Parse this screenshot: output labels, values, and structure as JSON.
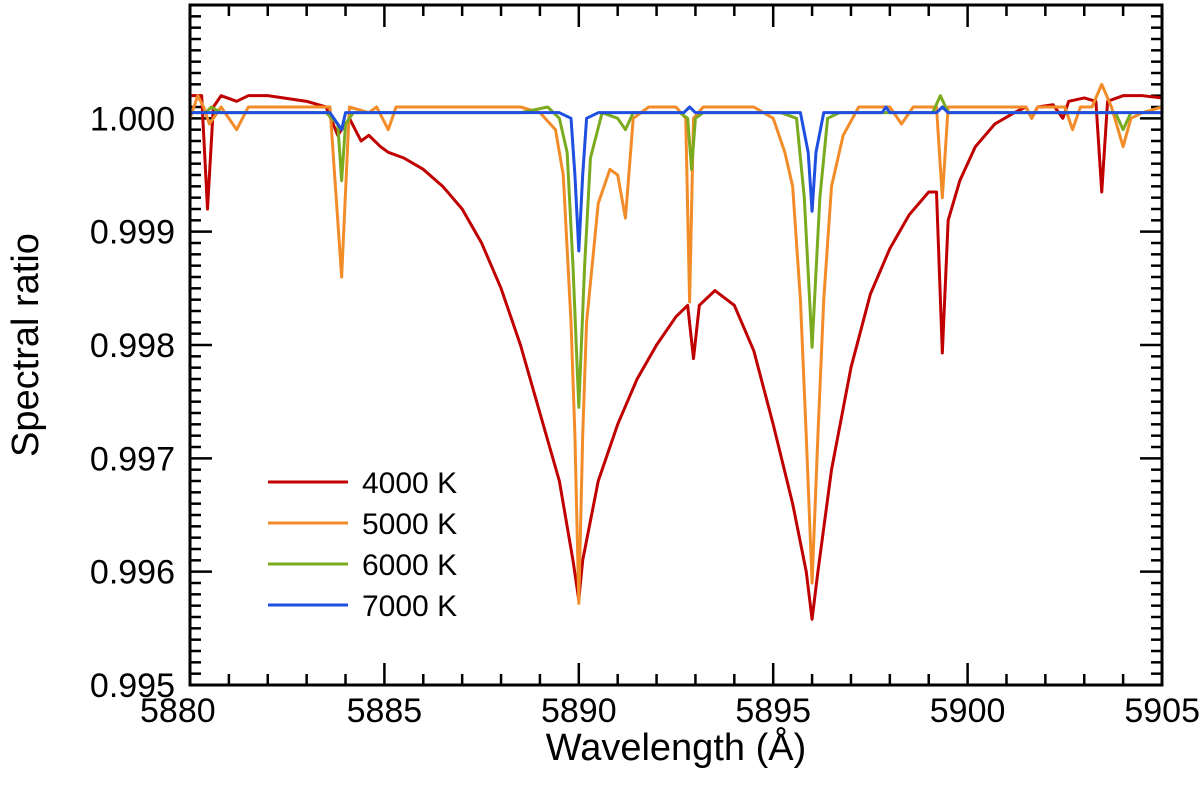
{
  "chart_data": {
    "type": "line",
    "title": "",
    "xlabel": "Wavelength (Å)",
    "ylabel": "Spectral ratio",
    "xlim": [
      5880,
      5905
    ],
    "ylim": [
      0.995,
      1.001
    ],
    "x_ticks": [
      5880,
      5885,
      5890,
      5895,
      5900,
      5905
    ],
    "x_tick_labels": [
      "5880",
      "5885",
      "5890",
      "5895",
      "5900",
      "5905"
    ],
    "x_minor_step": 1,
    "y_ticks": [
      0.995,
      0.996,
      0.997,
      0.998,
      0.999,
      1.0
    ],
    "y_tick_labels": [
      "0.995",
      "0.996",
      "0.997",
      "0.998",
      "0.999",
      "1.000"
    ],
    "y_minor_step": 0.0001,
    "grid": false,
    "legend_position": "bottom-left",
    "series": [
      {
        "name": "4000 K",
        "color": "#c00000",
        "points": [
          [
            5880.0,
            1.0002
          ],
          [
            5880.3,
            1.0002
          ],
          [
            5880.45,
            0.9992
          ],
          [
            5880.6,
            1.0001
          ],
          [
            5880.8,
            1.0002
          ],
          [
            5881.2,
            1.00015
          ],
          [
            5881.5,
            1.0002
          ],
          [
            5882.0,
            1.0002
          ],
          [
            5883.0,
            1.00015
          ],
          [
            5883.5,
            1.0001
          ],
          [
            5883.8,
            0.99985
          ],
          [
            5884.1,
            1.0
          ],
          [
            5884.4,
            0.9998
          ],
          [
            5884.6,
            0.99985
          ],
          [
            5884.9,
            0.99975
          ],
          [
            5885.1,
            0.9997
          ],
          [
            5885.5,
            0.99965
          ],
          [
            5886.0,
            0.99955
          ],
          [
            5886.5,
            0.9994
          ],
          [
            5887.0,
            0.9992
          ],
          [
            5887.5,
            0.9989
          ],
          [
            5888.0,
            0.9985
          ],
          [
            5888.5,
            0.998
          ],
          [
            5889.0,
            0.9974
          ],
          [
            5889.5,
            0.9968
          ],
          [
            5889.85,
            0.9961
          ],
          [
            5890.0,
            0.99575
          ],
          [
            5890.1,
            0.9961
          ],
          [
            5890.5,
            0.9968
          ],
          [
            5891.0,
            0.9973
          ],
          [
            5891.5,
            0.9977
          ],
          [
            5892.0,
            0.998
          ],
          [
            5892.5,
            0.99825
          ],
          [
            5892.8,
            0.99835
          ],
          [
            5892.95,
            0.99788
          ],
          [
            5893.1,
            0.99835
          ],
          [
            5893.5,
            0.99848
          ],
          [
            5894.0,
            0.99835
          ],
          [
            5894.5,
            0.99795
          ],
          [
            5895.0,
            0.9973
          ],
          [
            5895.5,
            0.9966
          ],
          [
            5895.85,
            0.996
          ],
          [
            5896.0,
            0.99558
          ],
          [
            5896.15,
            0.996
          ],
          [
            5896.5,
            0.9969
          ],
          [
            5897.0,
            0.9978
          ],
          [
            5897.5,
            0.99845
          ],
          [
            5898.0,
            0.99885
          ],
          [
            5898.5,
            0.99915
          ],
          [
            5899.0,
            0.99935
          ],
          [
            5899.2,
            0.99935
          ],
          [
            5899.35,
            0.99793
          ],
          [
            5899.5,
            0.9991
          ],
          [
            5899.8,
            0.99945
          ],
          [
            5900.2,
            0.99975
          ],
          [
            5900.7,
            0.99995
          ],
          [
            5901.2,
            1.00005
          ],
          [
            5901.5,
            1.0001
          ],
          [
            5901.65,
            1.0
          ],
          [
            5901.8,
            1.0001
          ],
          [
            5902.2,
            1.00012
          ],
          [
            5902.45,
            1.0
          ],
          [
            5902.6,
            1.00015
          ],
          [
            5903.0,
            1.00018
          ],
          [
            5903.3,
            1.00015
          ],
          [
            5903.45,
            0.99935
          ],
          [
            5903.6,
            1.00015
          ],
          [
            5904.0,
            1.0002
          ],
          [
            5904.5,
            1.0002
          ],
          [
            5905.0,
            1.00018
          ]
        ]
      },
      {
        "name": "5000 K",
        "color": "#f28c28",
        "points": [
          [
            5880.0,
            1.0
          ],
          [
            5880.2,
            1.0002
          ],
          [
            5880.35,
            1.0001
          ],
          [
            5880.5,
            0.99995
          ],
          [
            5880.8,
            1.0001
          ],
          [
            5881.2,
            0.9999
          ],
          [
            5881.5,
            1.0001
          ],
          [
            5882.0,
            1.0001
          ],
          [
            5883.0,
            1.0001
          ],
          [
            5883.6,
            1.0001
          ],
          [
            5883.9,
            0.9986
          ],
          [
            5884.1,
            1.0001
          ],
          [
            5884.6,
            1.00005
          ],
          [
            5884.8,
            1.0001
          ],
          [
            5885.1,
            0.9999
          ],
          [
            5885.3,
            1.0001
          ],
          [
            5886.0,
            1.0001
          ],
          [
            5887.5,
            1.0001
          ],
          [
            5888.5,
            1.0001
          ],
          [
            5889.0,
            1.00005
          ],
          [
            5889.4,
            0.9999
          ],
          [
            5889.6,
            0.9995
          ],
          [
            5889.8,
            0.9982
          ],
          [
            5889.9,
            0.9972
          ],
          [
            5890.0,
            0.99572
          ],
          [
            5890.1,
            0.9972
          ],
          [
            5890.2,
            0.9982
          ],
          [
            5890.5,
            0.99925
          ],
          [
            5890.8,
            0.99955
          ],
          [
            5891.0,
            0.9995
          ],
          [
            5891.2,
            0.99912
          ],
          [
            5891.4,
            1.0
          ],
          [
            5891.8,
            1.0001
          ],
          [
            5892.5,
            1.0001
          ],
          [
            5892.75,
            1.0
          ],
          [
            5892.85,
            0.99838
          ],
          [
            5892.95,
            1.0
          ],
          [
            5893.2,
            1.0001
          ],
          [
            5894.5,
            1.0001
          ],
          [
            5895.0,
            1.0
          ],
          [
            5895.3,
            0.9997
          ],
          [
            5895.5,
            0.9994
          ],
          [
            5895.7,
            0.9984
          ],
          [
            5895.85,
            0.9972
          ],
          [
            5896.0,
            0.9959
          ],
          [
            5896.15,
            0.9972
          ],
          [
            5896.3,
            0.9984
          ],
          [
            5896.5,
            0.9994
          ],
          [
            5896.8,
            0.99985
          ],
          [
            5897.2,
            1.0001
          ],
          [
            5898.0,
            1.0001
          ],
          [
            5898.3,
            0.99995
          ],
          [
            5898.6,
            1.0001
          ],
          [
            5899.2,
            1.0001
          ],
          [
            5899.35,
            0.9993
          ],
          [
            5899.5,
            1.0001
          ],
          [
            5900.5,
            1.0001
          ],
          [
            5901.5,
            1.0001
          ],
          [
            5901.65,
            1.0
          ],
          [
            5901.8,
            1.0001
          ],
          [
            5902.5,
            1.0001
          ],
          [
            5902.7,
            0.9999
          ],
          [
            5902.9,
            1.0001
          ],
          [
            5903.2,
            1.0001
          ],
          [
            5903.45,
            1.0003
          ],
          [
            5903.7,
            1.0001
          ],
          [
            5904.0,
            0.99975
          ],
          [
            5904.2,
            1.0
          ],
          [
            5904.5,
            1.00005
          ],
          [
            5905.0,
            1.0001
          ]
        ]
      },
      {
        "name": "6000 K",
        "color": "#7aab1e",
        "points": [
          [
            5880.0,
            1.00005
          ],
          [
            5880.4,
            1.00005
          ],
          [
            5880.55,
            1.0001
          ],
          [
            5880.8,
            1.00005
          ],
          [
            5883.5,
            1.00005
          ],
          [
            5883.8,
            0.99995
          ],
          [
            5883.9,
            0.99945
          ],
          [
            5884.0,
            0.99995
          ],
          [
            5884.2,
            1.00005
          ],
          [
            5888.5,
            1.00005
          ],
          [
            5889.2,
            1.0001
          ],
          [
            5889.5,
            1.0
          ],
          [
            5889.7,
            0.9997
          ],
          [
            5889.85,
            0.9987
          ],
          [
            5890.0,
            0.99745
          ],
          [
            5890.15,
            0.9987
          ],
          [
            5890.3,
            0.99965
          ],
          [
            5890.6,
            1.00005
          ],
          [
            5891.0,
            1.0
          ],
          [
            5891.2,
            0.9999
          ],
          [
            5891.4,
            1.00005
          ],
          [
            5892.6,
            1.00005
          ],
          [
            5892.8,
            1.0
          ],
          [
            5892.9,
            0.99955
          ],
          [
            5893.0,
            1.0
          ],
          [
            5893.2,
            1.00005
          ],
          [
            5895.2,
            1.00005
          ],
          [
            5895.6,
            1.0
          ],
          [
            5895.8,
            0.9993
          ],
          [
            5896.0,
            0.99798
          ],
          [
            5896.2,
            0.9993
          ],
          [
            5896.4,
            1.0
          ],
          [
            5896.7,
            1.00005
          ],
          [
            5899.1,
            1.00005
          ],
          [
            5899.3,
            1.0002
          ],
          [
            5899.5,
            1.00005
          ],
          [
            5903.8,
            1.00005
          ],
          [
            5904.0,
            0.9999
          ],
          [
            5904.2,
            1.00005
          ],
          [
            5905.0,
            1.00005
          ]
        ]
      },
      {
        "name": "7000 K",
        "color": "#1f4fe0",
        "points": [
          [
            5880.0,
            1.00005
          ],
          [
            5883.6,
            1.00005
          ],
          [
            5883.8,
            0.99995
          ],
          [
            5883.9,
            0.9999
          ],
          [
            5884.0,
            1.00005
          ],
          [
            5889.5,
            1.00005
          ],
          [
            5889.8,
            1.0
          ],
          [
            5889.9,
            0.9995
          ],
          [
            5890.0,
            0.99883
          ],
          [
            5890.1,
            0.9995
          ],
          [
            5890.2,
            1.0
          ],
          [
            5890.5,
            1.00005
          ],
          [
            5892.7,
            1.00005
          ],
          [
            5892.85,
            1.0001
          ],
          [
            5893.0,
            1.00005
          ],
          [
            5895.7,
            1.00005
          ],
          [
            5895.9,
            0.9997
          ],
          [
            5896.0,
            0.99918
          ],
          [
            5896.1,
            0.9997
          ],
          [
            5896.3,
            1.00005
          ],
          [
            5897.8,
            1.00005
          ],
          [
            5897.9,
            1.0001
          ],
          [
            5898.0,
            1.00005
          ],
          [
            5899.2,
            1.00005
          ],
          [
            5899.35,
            1.0001
          ],
          [
            5899.5,
            1.00005
          ],
          [
            5905.0,
            1.00005
          ]
        ]
      }
    ]
  }
}
